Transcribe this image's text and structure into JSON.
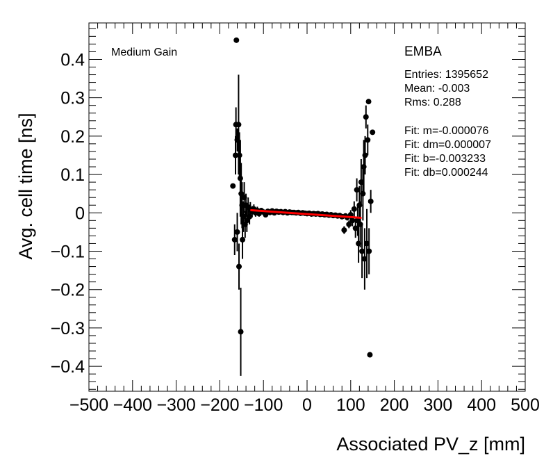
{
  "chart_data": {
    "type": "scatter",
    "title": "EMBA",
    "annotation": "Medium Gain",
    "xlabel": "Associated PV_z [mm]",
    "ylabel": "Avg. cell time [ns]",
    "xlim": [
      -500,
      500
    ],
    "ylim": [
      -0.465,
      0.495
    ],
    "grid": false,
    "x_ticks": [
      -500,
      -400,
      -300,
      -200,
      -100,
      0,
      100,
      200,
      300,
      400,
      500
    ],
    "x_tick_labels": [
      "−500",
      "−400",
      "−300",
      "−200",
      "−100",
      "0",
      "100",
      "200",
      "300",
      "400",
      "500"
    ],
    "y_ticks": [
      -0.4,
      -0.3,
      -0.2,
      -0.1,
      0,
      0.1,
      0.2,
      0.3,
      0.4
    ],
    "y_tick_labels": [
      "−0.4",
      "−0.3",
      "−0.2",
      "−0.1",
      "0",
      "0.1",
      "0.2",
      "0.3",
      "0.4"
    ],
    "stats": [
      "Entries: 1395652",
      "Mean: -0.003",
      "Rms: 0.288",
      "Fit: m=-0.000076",
      "Fit: dm=0.000007",
      "Fit: b=-0.003233",
      "Fit: db=0.000244"
    ],
    "fit_line": {
      "x": [
        -130,
        125
      ],
      "y": [
        0.007,
        -0.013
      ],
      "color": "#ff0000"
    },
    "points": [
      {
        "x": -170,
        "y": 0.07,
        "e": 0
      },
      {
        "x": -162,
        "y": 0.45,
        "e": 0
      },
      {
        "x": -163,
        "y": 0.23,
        "e": 0.045
      },
      {
        "x": -160,
        "y": 0.19,
        "e": 0.03
      },
      {
        "x": -164,
        "y": 0.15,
        "e": 0.05
      },
      {
        "x": -157,
        "y": 0.23,
        "e": 0.13
      },
      {
        "x": -155,
        "y": 0.15,
        "e": 0.06
      },
      {
        "x": -153,
        "y": 0.09,
        "e": 0.1
      },
      {
        "x": -151,
        "y": 0.05,
        "e": 0.08
      },
      {
        "x": -149,
        "y": 0.02,
        "e": 0.06
      },
      {
        "x": -166,
        "y": -0.07,
        "e": 0.04
      },
      {
        "x": -160,
        "y": -0.05,
        "e": 0.05
      },
      {
        "x": -156,
        "y": -0.14,
        "e": 0.06
      },
      {
        "x": -152,
        "y": -0.31,
        "e": 0.115
      },
      {
        "x": -148,
        "y": -0.07,
        "e": 0.05
      },
      {
        "x": -146,
        "y": -0.01,
        "e": 0.04
      },
      {
        "x": -144,
        "y": 0.04,
        "e": 0.04
      },
      {
        "x": -142,
        "y": -0.03,
        "e": 0.035
      },
      {
        "x": -140,
        "y": 0.02,
        "e": 0.03
      },
      {
        "x": -138,
        "y": -0.02,
        "e": 0.03
      },
      {
        "x": -135,
        "y": 0.015,
        "e": 0.025
      },
      {
        "x": -132,
        "y": -0.01,
        "e": 0.02
      },
      {
        "x": -130,
        "y": 0.008,
        "e": 0.02
      },
      {
        "x": -126,
        "y": 0.003,
        "e": 0.015
      },
      {
        "x": -122,
        "y": 0.01,
        "e": 0.012
      },
      {
        "x": -118,
        "y": 0.0,
        "e": 0.01
      },
      {
        "x": -114,
        "y": 0.006,
        "e": 0.01
      },
      {
        "x": -110,
        "y": -0.002,
        "e": 0.008
      },
      {
        "x": -105,
        "y": 0.006,
        "e": 0.007
      },
      {
        "x": -100,
        "y": 0.002,
        "e": 0.006
      },
      {
        "x": -95,
        "y": -0.005,
        "e": 0.006
      },
      {
        "x": -90,
        "y": 0.004,
        "e": 0.005
      },
      {
        "x": -85,
        "y": 0.001,
        "e": 0.005
      },
      {
        "x": -80,
        "y": 0.005,
        "e": 0.005
      },
      {
        "x": -75,
        "y": 0.0,
        "e": 0.004
      },
      {
        "x": -70,
        "y": 0.004,
        "e": 0.004
      },
      {
        "x": -65,
        "y": 0.002,
        "e": 0.004
      },
      {
        "x": -60,
        "y": 0.003,
        "e": 0.004
      },
      {
        "x": -55,
        "y": 0.001,
        "e": 0.003
      },
      {
        "x": -50,
        "y": 0.003,
        "e": 0.003
      },
      {
        "x": -45,
        "y": 0.0,
        "e": 0.003
      },
      {
        "x": -40,
        "y": 0.002,
        "e": 0.003
      },
      {
        "x": -35,
        "y": 0.001,
        "e": 0.003
      },
      {
        "x": -30,
        "y": 0.001,
        "e": 0.003
      },
      {
        "x": -25,
        "y": 0.0,
        "e": 0.003
      },
      {
        "x": -20,
        "y": 0.001,
        "e": 0.003
      },
      {
        "x": -15,
        "y": -0.001,
        "e": 0.003
      },
      {
        "x": -10,
        "y": 0.0,
        "e": 0.003
      },
      {
        "x": -5,
        "y": -0.001,
        "e": 0.003
      },
      {
        "x": 0,
        "y": -0.002,
        "e": 0.003
      },
      {
        "x": 5,
        "y": -0.001,
        "e": 0.003
      },
      {
        "x": 10,
        "y": -0.003,
        "e": 0.003
      },
      {
        "x": 15,
        "y": -0.002,
        "e": 0.003
      },
      {
        "x": 20,
        "y": -0.003,
        "e": 0.003
      },
      {
        "x": 25,
        "y": -0.002,
        "e": 0.003
      },
      {
        "x": 30,
        "y": -0.004,
        "e": 0.003
      },
      {
        "x": 35,
        "y": -0.003,
        "e": 0.003
      },
      {
        "x": 40,
        "y": -0.005,
        "e": 0.004
      },
      {
        "x": 45,
        "y": -0.004,
        "e": 0.004
      },
      {
        "x": 50,
        "y": -0.006,
        "e": 0.004
      },
      {
        "x": 55,
        "y": -0.005,
        "e": 0.004
      },
      {
        "x": 60,
        "y": -0.007,
        "e": 0.004
      },
      {
        "x": 65,
        "y": -0.006,
        "e": 0.005
      },
      {
        "x": 70,
        "y": -0.008,
        "e": 0.005
      },
      {
        "x": 75,
        "y": -0.007,
        "e": 0.005
      },
      {
        "x": 80,
        "y": -0.01,
        "e": 0.006
      },
      {
        "x": 85,
        "y": -0.045,
        "e": 0.01
      },
      {
        "x": 88,
        "y": -0.008,
        "e": 0.007
      },
      {
        "x": 92,
        "y": -0.012,
        "e": 0.008
      },
      {
        "x": 96,
        "y": -0.03,
        "e": 0.01
      },
      {
        "x": 100,
        "y": -0.005,
        "e": 0.012
      },
      {
        "x": 104,
        "y": -0.02,
        "e": 0.015
      },
      {
        "x": 108,
        "y": 0.01,
        "e": 0.02
      },
      {
        "x": 111,
        "y": -0.04,
        "e": 0.025
      },
      {
        "x": 114,
        "y": 0.06,
        "e": 0.03
      },
      {
        "x": 116,
        "y": -0.02,
        "e": 0.04
      },
      {
        "x": 118,
        "y": -0.08,
        "e": 0.05
      },
      {
        "x": 120,
        "y": 0.02,
        "e": 0.05
      },
      {
        "x": 122,
        "y": -0.03,
        "e": 0.06
      },
      {
        "x": 124,
        "y": 0.08,
        "e": 0.06
      },
      {
        "x": 126,
        "y": -0.1,
        "e": 0.07
      },
      {
        "x": 128,
        "y": 0.05,
        "e": 0.07
      },
      {
        "x": 130,
        "y": 0.12,
        "e": 0.07
      },
      {
        "x": 132,
        "y": -0.12,
        "e": 0.08
      },
      {
        "x": 133,
        "y": 0.15,
        "e": 0.05
      },
      {
        "x": 135,
        "y": 0.25,
        "e": 0.03
      },
      {
        "x": 137,
        "y": -0.08,
        "e": 0.09
      },
      {
        "x": 139,
        "y": 0.19,
        "e": 0.04
      },
      {
        "x": 141,
        "y": 0.29,
        "e": 0
      },
      {
        "x": 142,
        "y": -0.1,
        "e": 0.06
      },
      {
        "x": 144,
        "y": -0.37,
        "e": 0
      },
      {
        "x": 146,
        "y": 0.03,
        "e": 0.03
      },
      {
        "x": 150,
        "y": 0.21,
        "e": 0
      }
    ]
  }
}
